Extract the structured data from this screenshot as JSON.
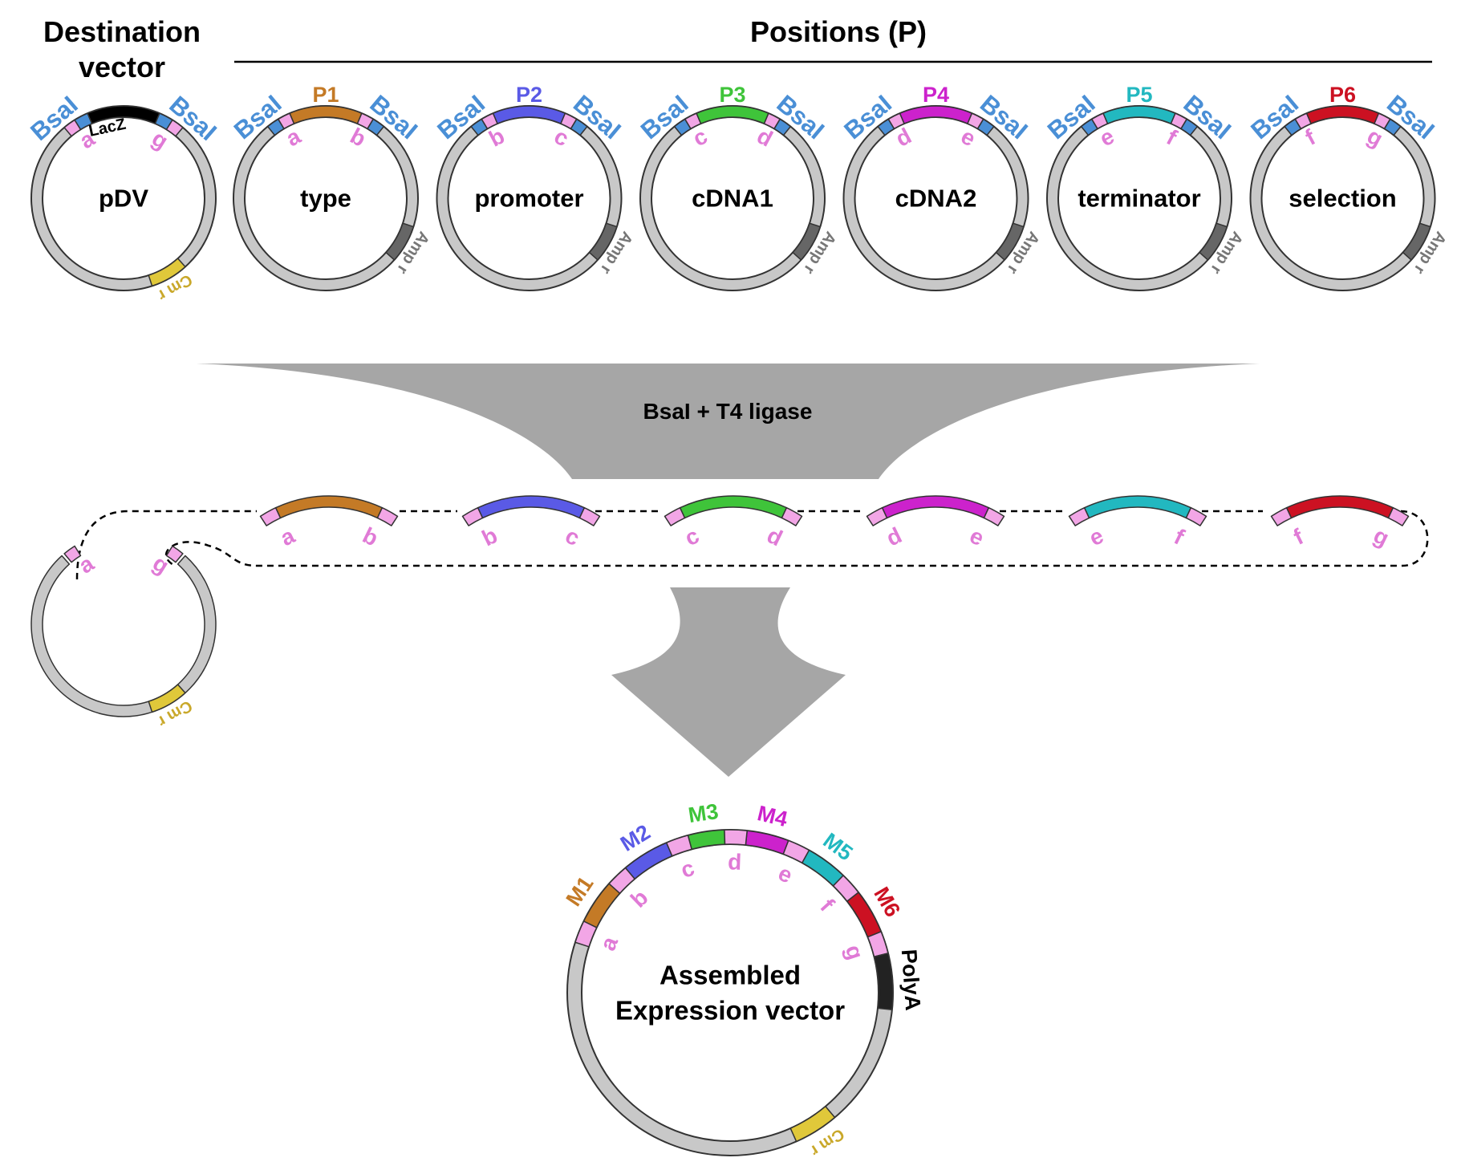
{
  "headers": {
    "destination": [
      "Destination",
      "vector"
    ],
    "positions": "Positions (P)"
  },
  "enzyme": "BsaI",
  "step_label": "BsaI  +  T4 ligase",
  "destination_vector": {
    "name": "pDV",
    "insert": "LacZ",
    "left_overhang": "a",
    "right_overhang": "g",
    "marker": "Cm r"
  },
  "position_plasmids": [
    {
      "pos": "P1",
      "name": "type",
      "left": "a",
      "right": "b",
      "color": "#c47a26",
      "marker": "Amp r"
    },
    {
      "pos": "P2",
      "name": "promoter",
      "left": "b",
      "right": "c",
      "color": "#5a5ae6",
      "marker": "Amp r"
    },
    {
      "pos": "P3",
      "name": "cDNA1",
      "left": "c",
      "right": "d",
      "color": "#3fc43a",
      "marker": "Amp r"
    },
    {
      "pos": "P4",
      "name": "cDNA2",
      "left": "d",
      "right": "e",
      "color": "#cc22cc",
      "marker": "Amp r"
    },
    {
      "pos": "P5",
      "name": "terminator",
      "left": "e",
      "right": "f",
      "color": "#22b8c0",
      "marker": "Amp r"
    },
    {
      "pos": "P6",
      "name": "selection",
      "left": "f",
      "right": "g",
      "color": "#cc1122",
      "marker": "Amp r"
    }
  ],
  "opened_backbone": {
    "left": "a",
    "right": "g",
    "marker": "Cm r"
  },
  "assembled": {
    "title": [
      "Assembled",
      "Expression vector"
    ],
    "modules": [
      {
        "label": "M1",
        "color": "#c47a26"
      },
      {
        "label": "M2",
        "color": "#5a5ae6"
      },
      {
        "label": "M3",
        "color": "#3fc43a"
      },
      {
        "label": "M4",
        "color": "#cc22cc"
      },
      {
        "label": "M5",
        "color": "#22b8c0"
      },
      {
        "label": "M6",
        "color": "#cc1122"
      }
    ],
    "overhangs": [
      "a",
      "b",
      "c",
      "d",
      "e",
      "f",
      "g"
    ],
    "polya": "PolyA",
    "marker": "Cm r"
  },
  "colors": {
    "backbone": "#c8c8c8",
    "outline": "#333333",
    "overhang": "#f2a6e6",
    "overhang_text": "#e07ad6",
    "bsai": "#4a8fd6",
    "cm": "#e0c83a",
    "cm_text": "#c9a82a",
    "amp": "#666666",
    "amp_text": "#777777",
    "arrow": "#a6a6a6",
    "lacz": "#000000",
    "polya": "#222222"
  }
}
